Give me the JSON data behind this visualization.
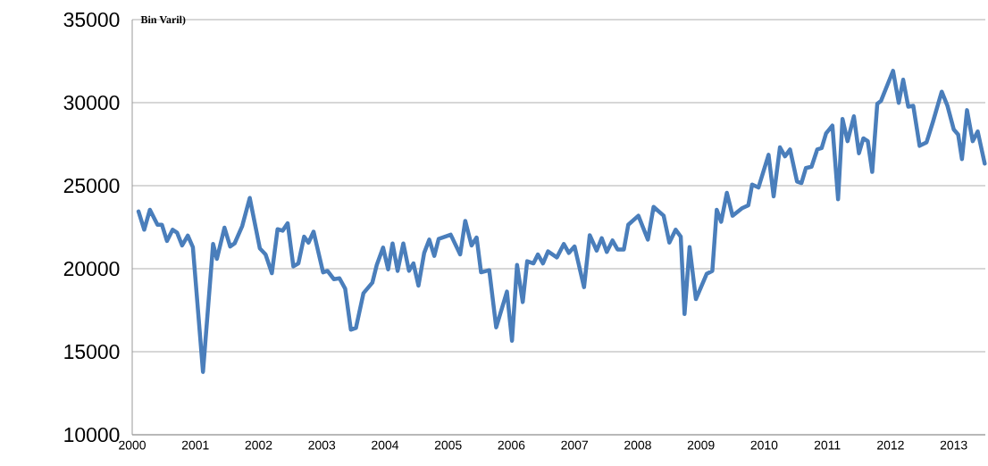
{
  "chart_data": {
    "type": "line",
    "ylabel": "Bin Varil)",
    "x": [
      2000.1,
      2000.19,
      2000.28,
      2000.4,
      2000.47,
      2000.55,
      2000.64,
      2000.71,
      2000.79,
      2000.88,
      2000.96,
      2001.12,
      2001.28,
      2001.34,
      2001.46,
      2001.55,
      2001.62,
      2001.74,
      2001.86,
      2002.02,
      2002.11,
      2002.21,
      2002.3,
      2002.38,
      2002.46,
      2002.55,
      2002.63,
      2002.72,
      2002.79,
      2002.87,
      2003.02,
      2003.09,
      2003.19,
      2003.28,
      2003.37,
      2003.46,
      2003.54,
      2003.66,
      2003.8,
      2003.87,
      2003.97,
      2004.05,
      2004.12,
      2004.2,
      2004.29,
      2004.38,
      2004.45,
      2004.53,
      2004.62,
      2004.7,
      2004.78,
      2004.85,
      2005.04,
      2005.19,
      2005.27,
      2005.37,
      2005.45,
      2005.52,
      2005.65,
      2005.76,
      2005.93,
      2006.01,
      2006.09,
      2006.18,
      2006.25,
      2006.35,
      2006.42,
      2006.5,
      2006.58,
      2006.72,
      2006.83,
      2006.91,
      2007.0,
      2007.15,
      2007.24,
      2007.35,
      2007.43,
      2007.51,
      2007.6,
      2007.68,
      2007.78,
      2007.85,
      2008.01,
      2008.16,
      2008.25,
      2008.41,
      2008.5,
      2008.6,
      2008.68,
      2008.74,
      2008.82,
      2008.92,
      2009.09,
      2009.18,
      2009.25,
      2009.32,
      2009.41,
      2009.5,
      2009.65,
      2009.75,
      2009.81,
      2009.91,
      2010.07,
      2010.15,
      2010.25,
      2010.33,
      2010.41,
      2010.52,
      2010.59,
      2010.66,
      2010.75,
      2010.84,
      2010.91,
      2010.98,
      2011.08,
      2011.17,
      2011.24,
      2011.32,
      2011.42,
      2011.5,
      2011.57,
      2011.64,
      2011.71,
      2011.79,
      2011.85,
      2012.04,
      2012.13,
      2012.2,
      2012.28,
      2012.36,
      2012.46,
      2012.57,
      2012.67,
      2012.81,
      2012.9,
      2013.0,
      2013.07,
      2013.13,
      2013.21,
      2013.3,
      2013.38,
      2013.49
    ],
    "series": [
      {
        "color": "#4a7ebb",
        "values": [
          23450,
          22350,
          23550,
          22650,
          22650,
          21670,
          22350,
          22170,
          21400,
          21990,
          21300,
          13780,
          21490,
          20590,
          22470,
          21340,
          21520,
          22560,
          24260,
          21220,
          20860,
          19730,
          22380,
          22290,
          22740,
          20140,
          20320,
          21930,
          21570,
          22230,
          19780,
          19870,
          19370,
          19420,
          18800,
          16330,
          16430,
          18530,
          19160,
          20230,
          21270,
          19960,
          21520,
          19870,
          21520,
          19870,
          20320,
          18980,
          20950,
          21750,
          20770,
          21800,
          22050,
          20860,
          22880,
          21400,
          21880,
          19780,
          19910,
          16470,
          18620,
          15660,
          20230,
          17990,
          20450,
          20320,
          20860,
          20320,
          21040,
          20680,
          21490,
          20950,
          21340,
          18890,
          22020,
          21090,
          21840,
          21010,
          21700,
          21160,
          21160,
          22650,
          23190,
          21750,
          23720,
          23190,
          21570,
          22350,
          21930,
          17270,
          21300,
          18170,
          19690,
          19870,
          23550,
          22830,
          24570,
          23190,
          23640,
          23820,
          25070,
          24890,
          26860,
          24350,
          27310,
          26770,
          27180,
          25250,
          25160,
          26060,
          26140,
          27180,
          27260,
          28150,
          28620,
          24180,
          29020,
          27680,
          29180,
          26950,
          27850,
          27680,
          25830,
          29930,
          30110,
          31920,
          29990,
          31380,
          29760,
          29810,
          27400,
          27610,
          28830,
          30660,
          29820,
          28390,
          28080,
          26600,
          29550,
          27680,
          28260,
          26330
        ]
      }
    ],
    "xlim": [
      2000,
      2013.5
    ],
    "ylim": [
      10000,
      35000
    ],
    "xticks": [
      2000,
      2001,
      2002,
      2003,
      2004,
      2005,
      2006,
      2007,
      2008,
      2009,
      2010,
      2011,
      2012,
      2013
    ],
    "yticks": [
      10000,
      15000,
      20000,
      25000,
      30000,
      35000
    ],
    "grid": "y"
  }
}
